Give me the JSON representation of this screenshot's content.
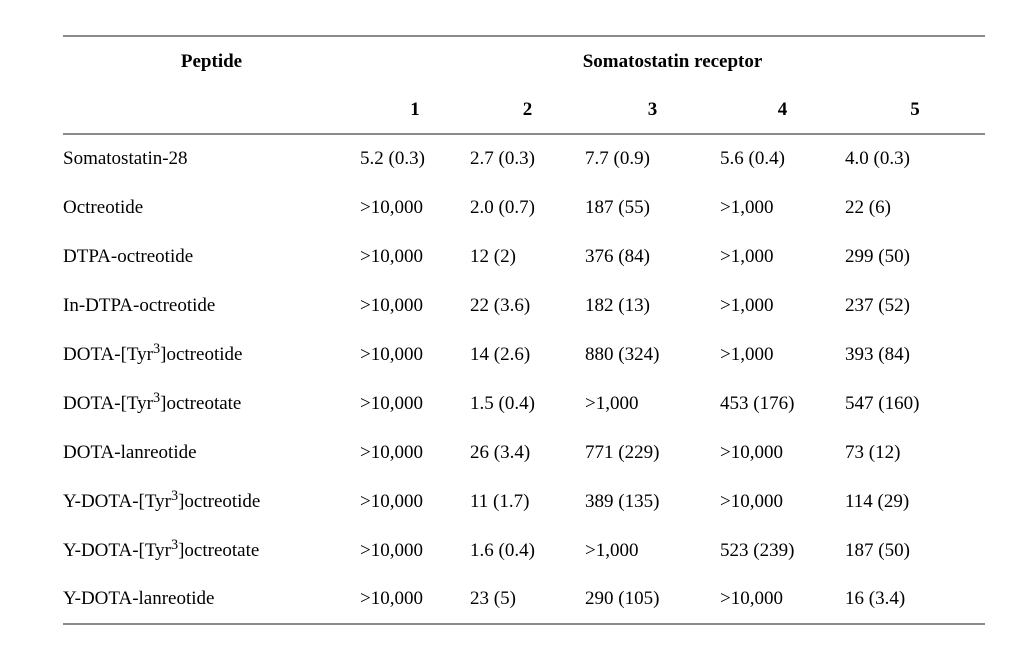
{
  "table": {
    "peptide_header": "Peptide",
    "group_header": "Somatostatin receptor",
    "receptor_columns": [
      "1",
      "2",
      "3",
      "4",
      "5"
    ],
    "rule_color": "#8a8a8a",
    "text_color": "#000000",
    "rows": [
      {
        "peptide": "Somatostatin-28",
        "values": [
          "5.2 (0.3)",
          "2.7 (0.3)",
          "7.7 (0.9)",
          "5.6 (0.4)",
          "4.0 (0.3)"
        ]
      },
      {
        "peptide": "Octreotide",
        "values": [
          ">10,000",
          "2.0 (0.7)",
          "187 (55)",
          ">1,000",
          "22 (6)"
        ]
      },
      {
        "peptide": "DTPA-octreotide",
        "values": [
          ">10,000",
          "12 (2)",
          "376 (84)",
          ">1,000",
          "299 (50)"
        ]
      },
      {
        "peptide": "In-DTPA-octreotide",
        "values": [
          ">10,000",
          "22 (3.6)",
          "182 (13)",
          ">1,000",
          "237 (52)"
        ]
      },
      {
        "peptide": "DOTA-[Tyr",
        "sup": "3",
        "peptide_after": "]octreotide",
        "values": [
          ">10,000",
          "14 (2.6)",
          "880 (324)",
          ">1,000",
          "393 (84)"
        ]
      },
      {
        "peptide": "DOTA-[Tyr",
        "sup": "3",
        "peptide_after": "]octreotate",
        "values": [
          ">10,000",
          "1.5 (0.4)",
          ">1,000",
          "453 (176)",
          "547 (160)"
        ]
      },
      {
        "peptide": "DOTA-lanreotide",
        "values": [
          ">10,000",
          "26 (3.4)",
          "771 (229)",
          ">10,000",
          "73 (12)"
        ]
      },
      {
        "peptide": "Y-DOTA-[Tyr",
        "sup": "3",
        "peptide_after": "]octreotide",
        "values": [
          ">10,000",
          "11 (1.7)",
          "389 (135)",
          ">10,000",
          "114 (29)"
        ]
      },
      {
        "peptide": "Y-DOTA-[Tyr",
        "sup": "3",
        "peptide_after": "]octreotate",
        "values": [
          ">10,000",
          "1.6 (0.4)",
          ">1,000",
          "523 (239)",
          "187 (50)"
        ]
      },
      {
        "peptide": "Y-DOTA-lanreotide",
        "values": [
          ">10,000",
          "23 (5)",
          "290 (105)",
          ">10,000",
          "16 (3.4)"
        ]
      }
    ]
  }
}
